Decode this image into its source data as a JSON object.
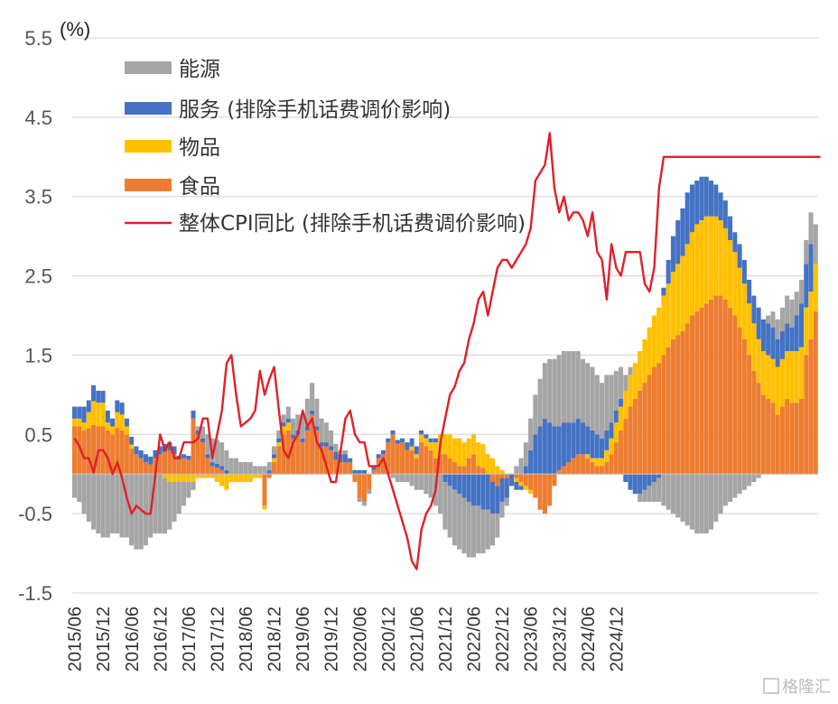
{
  "chart_data": {
    "type": "bar",
    "stacked": true,
    "unit_label": "(%)",
    "y_ticks": [
      "5.5",
      "4.5",
      "3.5",
      "2.5",
      "1.5",
      "0.5",
      "-0.5",
      "-1.5"
    ],
    "ylim": [
      -1.5,
      5.5
    ],
    "x_tick_labels": [
      "2015/06",
      "2015/12",
      "2016/06",
      "2016/12",
      "2017/06",
      "2017/12",
      "2018/06",
      "2018/12",
      "2019/06",
      "2019/12",
      "2020/06",
      "2020/12",
      "2021/06",
      "2021/12",
      "2022/06",
      "2022/12",
      "2023/06",
      "2023/12",
      "2024/06",
      "2024/12"
    ],
    "legend": [
      {
        "name": "能源",
        "color": "#a5a5a5",
        "kind": "bar"
      },
      {
        "name": "服务 (排除手机话费调价影响)",
        "color": "#4472c4",
        "kind": "bar"
      },
      {
        "name": "物品",
        "color": "#ffc000",
        "kind": "bar"
      },
      {
        "name": "食品",
        "color": "#ed7d31",
        "kind": "bar"
      },
      {
        "name": "整体CPI同比 (排除手机话费调价影响)",
        "color": "#e0202a",
        "kind": "line"
      }
    ],
    "categories_start": "2015/06",
    "categories_end": "2024/12",
    "food": [
      0.6,
      0.6,
      0.55,
      0.58,
      0.62,
      0.6,
      0.6,
      0.55,
      0.5,
      0.58,
      0.55,
      0.5,
      0.32,
      0.25,
      0.2,
      0.15,
      0.12,
      0.2,
      0.25,
      0.28,
      0.3,
      0.25,
      0.18,
      0.2,
      0.18,
      0.7,
      0.5,
      0.4,
      0.2,
      0.1,
      0.08,
      0.05,
      0.0,
      0.0,
      0.0,
      0.0,
      0.0,
      0.0,
      0.0,
      0.0,
      -0.4,
      -0.05,
      0.15,
      0.35,
      0.5,
      0.55,
      0.45,
      0.5,
      0.4,
      0.55,
      0.75,
      0.55,
      0.35,
      0.35,
      0.3,
      0.18,
      0.15,
      0.15,
      0.15,
      -0.1,
      -0.3,
      -0.35,
      -0.2,
      0.05,
      0.2,
      0.25,
      0.4,
      0.5,
      0.38,
      0.4,
      0.3,
      0.3,
      0.2,
      0.4,
      0.35,
      0.3,
      0.2,
      0.25,
      0.25,
      0.2,
      0.15,
      0.1,
      0.1,
      0.2,
      0.25,
      0.1,
      0.08,
      0.0,
      -0.1,
      -0.15,
      -0.05,
      -0.05,
      0.0,
      -0.05,
      -0.1,
      -0.15,
      -0.2,
      -0.3,
      -0.45,
      -0.5,
      -0.4,
      -0.15,
      0.05,
      0.1,
      0.15,
      0.2,
      0.25,
      0.25,
      0.2,
      0.15,
      0.1,
      0.1,
      0.15,
      0.25,
      0.4,
      0.55,
      0.7,
      0.85,
      0.95,
      1.05,
      1.15,
      1.25,
      1.35,
      1.4,
      1.5,
      1.6,
      1.7,
      1.75,
      1.8,
      1.9,
      2.0,
      2.05,
      2.1,
      2.15,
      2.2,
      2.25,
      2.25,
      2.2,
      2.1,
      2.0,
      1.85,
      1.7,
      1.5,
      1.3,
      1.15,
      1.0,
      0.95,
      0.9,
      0.75,
      0.85,
      0.95,
      0.9,
      0.9,
      0.95,
      1.5,
      1.7,
      2.05
    ],
    "goods": [
      0.1,
      0.1,
      0.1,
      0.2,
      0.3,
      0.3,
      0.3,
      0.1,
      0.1,
      0.2,
      0.2,
      0.1,
      0.05,
      0.0,
      0.0,
      0.0,
      0.0,
      0.0,
      0.0,
      -0.05,
      -0.1,
      -0.1,
      -0.1,
      -0.1,
      -0.1,
      -0.1,
      -0.05,
      -0.05,
      -0.05,
      -0.05,
      -0.1,
      -0.15,
      -0.2,
      -0.1,
      -0.1,
      -0.1,
      -0.1,
      -0.1,
      -0.05,
      -0.05,
      -0.05,
      0.0,
      0.05,
      0.05,
      0.1,
      0.1,
      0.0,
      0.0,
      0.0,
      0.0,
      0.0,
      0.0,
      0.0,
      0.0,
      0.0,
      0.0,
      0.0,
      0.0,
      0.0,
      0.0,
      0.0,
      0.0,
      0.0,
      0.0,
      0.0,
      0.0,
      0.0,
      0.0,
      0.0,
      0.0,
      0.0,
      0.05,
      0.05,
      0.1,
      0.1,
      0.1,
      0.2,
      0.25,
      0.25,
      0.3,
      0.3,
      0.35,
      0.3,
      0.25,
      0.25,
      0.3,
      0.3,
      0.25,
      0.2,
      0.1,
      0.05,
      0.0,
      0.0,
      -0.05,
      -0.05,
      -0.05,
      -0.05,
      0.0,
      0.0,
      0.0,
      0.0,
      0.0,
      0.0,
      0.0,
      0.0,
      0.0,
      0.0,
      0.0,
      0.05,
      0.05,
      0.1,
      0.1,
      0.15,
      0.2,
      0.25,
      0.3,
      0.35,
      0.4,
      0.45,
      0.5,
      0.55,
      0.6,
      0.65,
      0.7,
      0.75,
      0.8,
      0.85,
      0.9,
      0.95,
      1.0,
      1.05,
      1.1,
      1.1,
      1.1,
      1.05,
      1.0,
      0.95,
      0.9,
      0.85,
      0.8,
      0.75,
      0.7,
      0.65,
      0.6,
      0.55,
      0.55,
      0.55,
      0.55,
      0.6,
      0.6,
      0.6,
      0.65,
      0.65,
      0.65,
      0.6,
      0.6,
      0.6,
      0.65
    ],
    "services": [
      0.15,
      0.15,
      0.2,
      0.15,
      0.2,
      0.15,
      0.15,
      0.15,
      0.1,
      0.15,
      0.15,
      0.1,
      0.1,
      0.1,
      0.1,
      0.1,
      0.1,
      0.1,
      0.1,
      0.1,
      0.1,
      0.1,
      0.05,
      0.05,
      0.05,
      0.1,
      0.05,
      0.05,
      0.05,
      0.05,
      0.05,
      0.05,
      0.05,
      0.0,
      0.0,
      0.0,
      0.0,
      0.0,
      0.0,
      0.0,
      0.0,
      0.05,
      0.05,
      0.05,
      0.05,
      0.05,
      0.05,
      0.05,
      0.05,
      0.05,
      0.05,
      0.05,
      0.05,
      0.05,
      0.05,
      0.1,
      0.1,
      0.1,
      0.05,
      0.05,
      0.05,
      0.05,
      0.0,
      0.05,
      0.05,
      0.05,
      0.05,
      0.05,
      0.05,
      0.05,
      0.1,
      0.1,
      0.1,
      0.05,
      0.05,
      0.05,
      0.05,
      0.0,
      -0.1,
      -0.15,
      -0.2,
      -0.25,
      -0.3,
      -0.35,
      -0.4,
      -0.4,
      -0.45,
      -0.45,
      -0.4,
      -0.35,
      -0.3,
      -0.25,
      -0.15,
      -0.1,
      -0.05,
      0.1,
      0.3,
      0.5,
      0.6,
      0.7,
      0.65,
      0.6,
      0.55,
      0.55,
      0.5,
      0.45,
      0.45,
      0.4,
      0.35,
      0.35,
      0.3,
      0.25,
      0.25,
      0.2,
      0.15,
      0.1,
      -0.1,
      -0.2,
      -0.25,
      -0.25,
      -0.2,
      -0.15,
      -0.1,
      -0.05,
      0.1,
      0.3,
      0.45,
      0.55,
      0.6,
      0.65,
      0.6,
      0.55,
      0.55,
      0.5,
      0.45,
      0.4,
      0.35,
      0.35,
      0.3,
      0.25,
      0.3,
      0.3,
      0.3,
      0.35,
      0.4,
      0.4,
      0.4,
      0.4,
      0.35,
      0.35,
      0.35,
      0.3,
      0.45,
      0.55,
      0.55,
      0.6
    ],
    "energy": [
      -0.3,
      -0.35,
      -0.5,
      -0.6,
      -0.7,
      -0.75,
      -0.8,
      -0.8,
      -0.75,
      -0.75,
      -0.8,
      -0.8,
      -0.9,
      -0.95,
      -0.95,
      -0.9,
      -0.8,
      -0.75,
      -0.75,
      -0.7,
      -0.6,
      -0.5,
      -0.4,
      -0.3,
      -0.2,
      -0.1,
      0.05,
      0.15,
      0.25,
      0.3,
      0.3,
      0.3,
      0.25,
      0.2,
      0.2,
      0.15,
      0.15,
      0.15,
      0.1,
      0.1,
      0.1,
      0.1,
      0.1,
      0.1,
      0.1,
      0.15,
      0.2,
      0.2,
      0.3,
      0.35,
      0.35,
      0.35,
      0.3,
      0.25,
      0.2,
      0.1,
      0.05,
      0.05,
      0.0,
      0.0,
      -0.05,
      -0.05,
      -0.05,
      0.0,
      0.0,
      0.0,
      0.0,
      -0.05,
      -0.1,
      -0.1,
      -0.1,
      -0.15,
      -0.2,
      -0.2,
      -0.25,
      -0.3,
      -0.4,
      -0.5,
      -0.6,
      -0.65,
      -0.7,
      -0.7,
      -0.7,
      -0.7,
      -0.65,
      -0.6,
      -0.55,
      -0.5,
      -0.4,
      -0.3,
      -0.2,
      -0.1,
      0.0,
      0.1,
      0.2,
      0.3,
      0.4,
      0.5,
      0.6,
      0.7,
      0.8,
      0.85,
      0.9,
      0.9,
      0.9,
      0.9,
      0.85,
      0.8,
      0.8,
      0.8,
      0.75,
      0.7,
      0.7,
      0.6,
      0.5,
      0.4,
      0.2,
      0.1,
      0.0,
      -0.1,
      -0.15,
      -0.2,
      -0.25,
      -0.3,
      -0.4,
      -0.45,
      -0.5,
      -0.55,
      -0.6,
      -0.65,
      -0.7,
      -0.75,
      -0.75,
      -0.75,
      -0.7,
      -0.6,
      -0.5,
      -0.4,
      -0.35,
      -0.3,
      -0.25,
      -0.2,
      -0.15,
      -0.1,
      -0.05,
      0.0,
      0.1,
      0.2,
      0.25,
      0.3,
      0.35,
      0.35,
      0.3,
      0.3,
      0.3,
      0.4,
      0.5,
      0.55
    ],
    "cpi": [
      0.45,
      0.35,
      0.2,
      0.2,
      0.02,
      0.3,
      0.3,
      0.2,
      0.0,
      0.15,
      -0.05,
      -0.3,
      -0.5,
      -0.4,
      -0.45,
      -0.5,
      -0.5,
      0.0,
      0.5,
      0.3,
      0.4,
      0.2,
      0.2,
      0.4,
      0.4,
      0.4,
      0.45,
      0.7,
      0.7,
      0.2,
      0.5,
      0.8,
      1.4,
      1.5,
      1.0,
      0.6,
      0.65,
      0.7,
      0.8,
      1.3,
      1.0,
      1.2,
      1.35,
      0.8,
      0.3,
      0.2,
      0.4,
      0.5,
      0.8,
      0.6,
      0.7,
      0.4,
      0.3,
      0.1,
      -0.1,
      -0.1,
      0.3,
      0.7,
      0.8,
      0.5,
      0.4,
      0.4,
      0.1,
      0.1,
      0.1,
      0.2,
      0.0,
      -0.2,
      -0.4,
      -0.6,
      -0.8,
      -1.1,
      -1.2,
      -0.7,
      -0.5,
      -0.4,
      -0.2,
      0.4,
      0.7,
      1.0,
      1.1,
      1.3,
      1.4,
      1.7,
      1.9,
      2.2,
      2.3,
      2.0,
      2.3,
      2.6,
      2.7,
      2.7,
      2.6,
      2.7,
      2.8,
      2.9,
      3.1,
      3.7,
      3.8,
      3.9,
      4.3,
      3.6,
      3.3,
      3.5,
      3.2,
      3.3,
      3.3,
      3.2,
      3.0,
      3.3,
      2.8,
      2.7,
      2.2,
      2.9,
      2.6,
      2.5,
      2.8,
      2.8,
      2.8,
      2.8,
      2.4,
      2.3,
      2.6,
      3.6,
      4.0,
      4.0,
      4.0,
      4.0,
      4.0,
      4.0,
      4.0,
      4.0,
      4.0,
      4.0,
      4.0,
      4.0,
      4.0,
      4.0,
      4.0,
      4.0,
      4.0,
      4.0,
      4.0,
      4.0,
      4.0,
      4.0,
      4.0,
      4.0,
      4.0,
      4.0,
      4.0,
      4.0,
      4.0,
      4.0,
      4.0,
      4.0,
      4.0,
      4.0
    ]
  },
  "watermark": "格隆汇"
}
